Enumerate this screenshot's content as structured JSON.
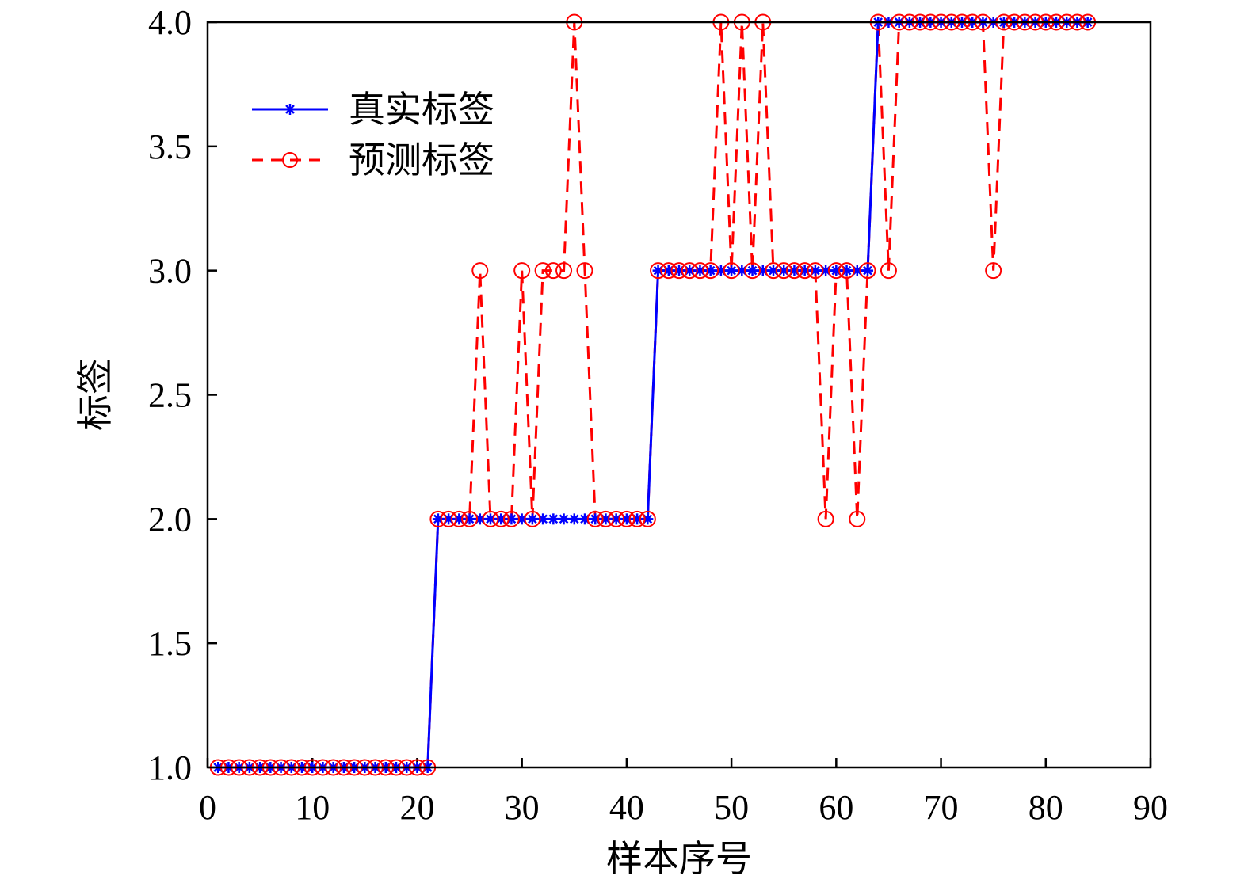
{
  "chart_data": {
    "type": "line",
    "xlabel": "样本序号",
    "ylabel": "标签",
    "xlim": [
      0,
      90
    ],
    "ylim": [
      1.0,
      4.0
    ],
    "x_ticks": [
      "0",
      "10",
      "20",
      "30",
      "40",
      "50",
      "60",
      "70",
      "80",
      "90"
    ],
    "y_ticks": [
      "1.0",
      "1.5",
      "2.0",
      "2.5",
      "3.0",
      "3.5",
      "4.0"
    ],
    "grid": false,
    "legend_position": "top-left",
    "series": [
      {
        "name": "真实标签",
        "color": "#0000ff",
        "line_style": "solid",
        "marker": "asterisk",
        "x": [
          1,
          2,
          3,
          4,
          5,
          6,
          7,
          8,
          9,
          10,
          11,
          12,
          13,
          14,
          15,
          16,
          17,
          18,
          19,
          20,
          21,
          22,
          23,
          24,
          25,
          26,
          27,
          28,
          29,
          30,
          31,
          32,
          33,
          34,
          35,
          36,
          37,
          38,
          39,
          40,
          41,
          42,
          43,
          44,
          45,
          46,
          47,
          48,
          49,
          50,
          51,
          52,
          53,
          54,
          55,
          56,
          57,
          58,
          59,
          60,
          61,
          62,
          63,
          64,
          65,
          66,
          67,
          68,
          69,
          70,
          71,
          72,
          73,
          74,
          75,
          76,
          77,
          78,
          79,
          80,
          81,
          82,
          83,
          84
        ],
        "y": [
          1,
          1,
          1,
          1,
          1,
          1,
          1,
          1,
          1,
          1,
          1,
          1,
          1,
          1,
          1,
          1,
          1,
          1,
          1,
          1,
          1,
          2,
          2,
          2,
          2,
          2,
          2,
          2,
          2,
          2,
          2,
          2,
          2,
          2,
          2,
          2,
          2,
          2,
          2,
          2,
          2,
          2,
          3,
          3,
          3,
          3,
          3,
          3,
          3,
          3,
          3,
          3,
          3,
          3,
          3,
          3,
          3,
          3,
          3,
          3,
          3,
          3,
          3,
          4,
          4,
          4,
          4,
          4,
          4,
          4,
          4,
          4,
          4,
          4,
          4,
          4,
          4,
          4,
          4,
          4,
          4,
          4,
          4,
          4
        ]
      },
      {
        "name": "预测标签",
        "color": "#ff0000",
        "line_style": "dashed",
        "marker": "circle",
        "x": [
          1,
          2,
          3,
          4,
          5,
          6,
          7,
          8,
          9,
          10,
          11,
          12,
          13,
          14,
          15,
          16,
          17,
          18,
          19,
          20,
          21,
          22,
          23,
          24,
          25,
          26,
          27,
          28,
          29,
          30,
          31,
          32,
          33,
          34,
          35,
          36,
          37,
          38,
          39,
          40,
          41,
          42,
          43,
          44,
          45,
          46,
          47,
          48,
          49,
          50,
          51,
          52,
          53,
          54,
          55,
          56,
          57,
          58,
          59,
          60,
          61,
          62,
          63,
          64,
          65,
          66,
          67,
          68,
          69,
          70,
          71,
          72,
          73,
          74,
          75,
          76,
          77,
          78,
          79,
          80,
          81,
          82,
          83,
          84
        ],
        "y": [
          1,
          1,
          1,
          1,
          1,
          1,
          1,
          1,
          1,
          1,
          1,
          1,
          1,
          1,
          1,
          1,
          1,
          1,
          1,
          1,
          1,
          2,
          2,
          2,
          2,
          3,
          2,
          2,
          2,
          3,
          2,
          3,
          3,
          3,
          4,
          3,
          2,
          2,
          2,
          2,
          2,
          2,
          3,
          3,
          3,
          3,
          3,
          3,
          4,
          3,
          4,
          3,
          4,
          3,
          3,
          3,
          3,
          3,
          2,
          3,
          3,
          2,
          3,
          4,
          3,
          4,
          4,
          4,
          4,
          4,
          4,
          4,
          4,
          4,
          3,
          4,
          4,
          4,
          4,
          4,
          4,
          4,
          4,
          4
        ]
      }
    ]
  }
}
